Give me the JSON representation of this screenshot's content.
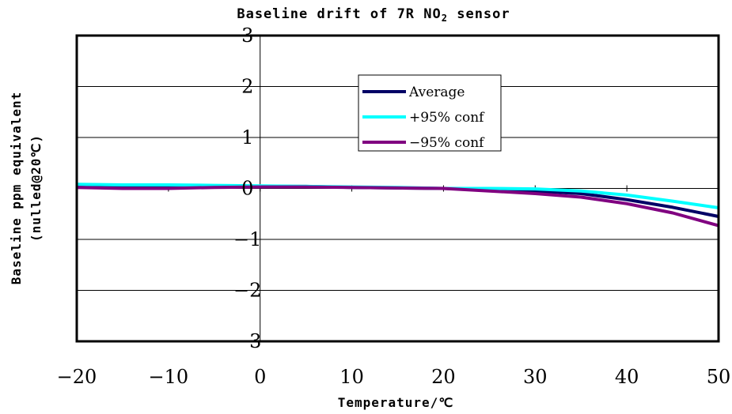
{
  "chart_data": {
    "type": "line",
    "title": "Baseline drift of 7R NO",
    "title_subscript": "2",
    "title_suffix": " sensor",
    "xlabel": "Temperature/℃",
    "ylabel_line1": "Baseline ppm equivalent",
    "ylabel_line2": "(nulled@20℃)",
    "xlim": [
      -20,
      50
    ],
    "ylim": [
      -3,
      3
    ],
    "xticks": [
      -20,
      -10,
      0,
      10,
      20,
      30,
      40,
      50
    ],
    "xtick_labels": [
      "−20",
      "−10",
      "0",
      "10",
      "20",
      "30",
      "40",
      "50"
    ],
    "yticks": [
      3,
      2,
      1,
      0,
      -1,
      -2,
      -3
    ],
    "ytick_labels": [
      "3",
      "2",
      "1",
      "0",
      "−1",
      "−2",
      "−3"
    ],
    "grid": "horizontal",
    "legend_position": "top-center",
    "x": [
      -20,
      -15,
      -10,
      -5,
      0,
      5,
      10,
      15,
      20,
      25,
      30,
      35,
      40,
      45,
      50
    ],
    "series": [
      {
        "name": "Average",
        "color": "#000066",
        "values": [
          0.05,
          0.04,
          0.04,
          0.04,
          0.04,
          0.04,
          0.02,
          0.01,
          0.0,
          -0.03,
          -0.05,
          -0.1,
          -0.22,
          -0.37,
          -0.55
        ]
      },
      {
        "name": "+95% conf",
        "color": "#00ffff",
        "values": [
          0.08,
          0.07,
          0.07,
          0.06,
          0.05,
          0.04,
          0.03,
          0.02,
          0.0,
          0.0,
          -0.01,
          -0.05,
          -0.13,
          -0.25,
          -0.38
        ]
      },
      {
        "name": "−95% conf",
        "color": "#800080",
        "values": [
          0.02,
          0.0,
          0.0,
          0.02,
          0.03,
          0.03,
          0.02,
          0.01,
          0.0,
          -0.05,
          -0.1,
          -0.17,
          -0.3,
          -0.48,
          -0.73
        ]
      }
    ]
  }
}
